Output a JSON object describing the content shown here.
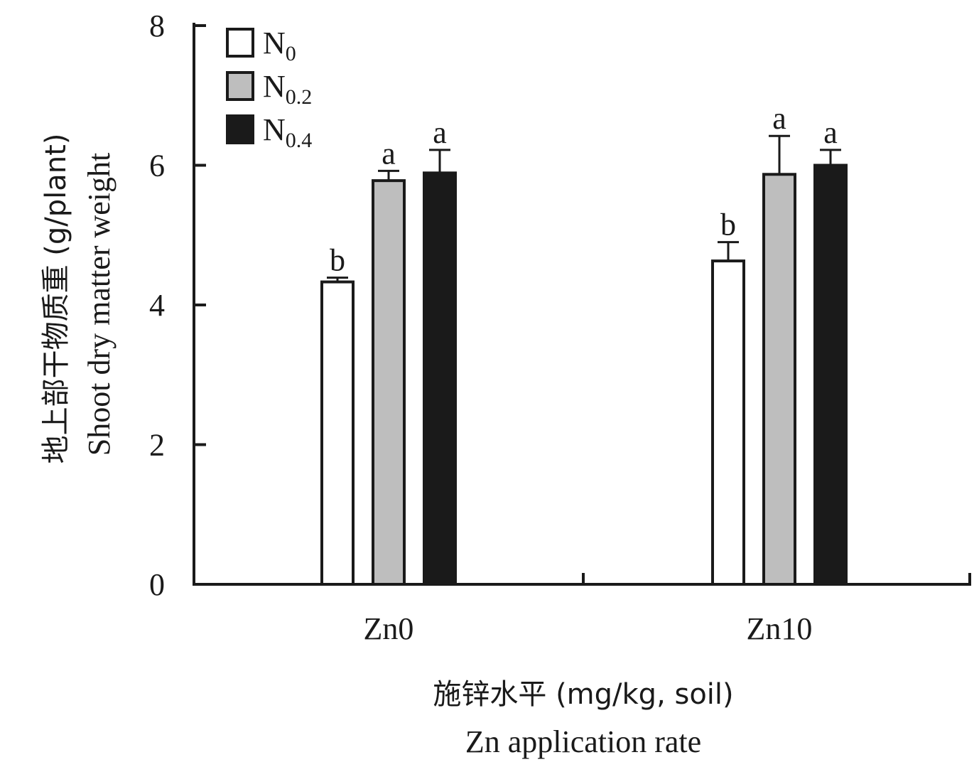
{
  "chart_data": {
    "type": "bar",
    "categories": [
      "Zn0",
      "Zn10"
    ],
    "series": [
      {
        "name_main": "N",
        "name_sub": "0",
        "fill": "#ffffff",
        "values": [
          4.33,
          4.63
        ],
        "errors": [
          0.06,
          0.27
        ],
        "letters": [
          "b",
          "b"
        ]
      },
      {
        "name_main": "N",
        "name_sub": "0.2",
        "fill": "#bebebe",
        "values": [
          5.78,
          5.87
        ],
        "errors": [
          0.14,
          0.55
        ],
        "letters": [
          "a",
          "a"
        ]
      },
      {
        "name_main": "N",
        "name_sub": "0.4",
        "fill": "#1a1a1a",
        "values": [
          5.89,
          6.0
        ],
        "errors": [
          0.33,
          0.22
        ],
        "letters": [
          "a",
          "a"
        ]
      }
    ],
    "ylim": [
      0,
      8
    ],
    "yticks": [
      "0",
      "2",
      "4",
      "6",
      "8"
    ],
    "ylabel_cn": "地上部干物质重 (g/plant)",
    "ylabel_en": "Shoot dry matter weight",
    "xlabel_cn": "施锌水平 (mg/kg, soil)",
    "xlabel_en": "Zn application rate",
    "legend_position": "top-left",
    "grid": false
  }
}
